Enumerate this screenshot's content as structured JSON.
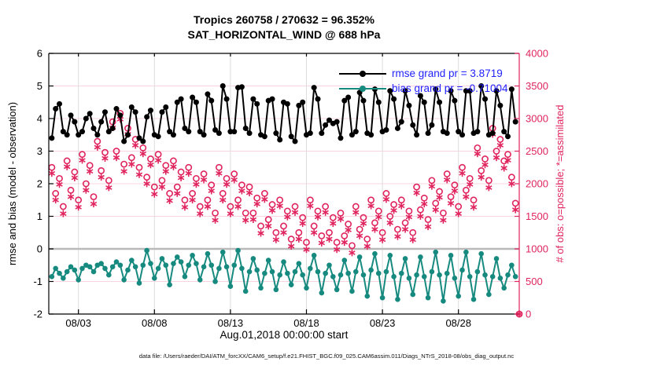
{
  "figure": {
    "title_line1": "Tropics 260758 / 270632 = 96.352%",
    "title_line2": "SAT_HORIZONTAL_WIND @ 688 hPa",
    "caption": "data file: /Users/raeder/DAI/ATM_forcXX/CAM6_setup/f.e21.FHIST_BGC.f09_025.CAM6assim.011/Diags_NTrS_2018-08/obs_diag_output.nc"
  },
  "colors": {
    "rmse": "#000000",
    "bias": "#178a80",
    "obs": "#e0245e",
    "legend_text": "#2222ff",
    "grid_h": "#f7d4e0",
    "grid_v": "#dcdcdc",
    "zero_line": "#b9b9b9",
    "axis_left": "#000000",
    "axis_right": "#e0245e"
  },
  "chart_data": {
    "type": "line",
    "title": "Tropics 260758 / 270632 = 96.352% | SAT_HORIZONTAL_WIND @ 688 hPa",
    "xlabel": "Aug.01,2018 00:00:00 start",
    "ylabel_left": "rmse and bias (model - observation)",
    "ylabel_right": "# of obs: o=possible; *=assimilated",
    "x_domain_days": [
      1.05,
      32
    ],
    "x_start_day": 1.25,
    "x_step_days": 0.25,
    "x_ticks": [
      {
        "day": 3,
        "label": "08/03"
      },
      {
        "day": 8,
        "label": "08/08"
      },
      {
        "day": 13,
        "label": "08/13"
      },
      {
        "day": 18,
        "label": "08/18"
      },
      {
        "day": 23,
        "label": "08/23"
      },
      {
        "day": 28,
        "label": "08/28"
      }
    ],
    "ylim_left": [
      -2,
      6
    ],
    "yticks_left": [
      -2,
      -1,
      0,
      1,
      2,
      3,
      4,
      5,
      6
    ],
    "ylim_right": [
      0,
      4000
    ],
    "yticks_right": [
      0,
      500,
      1000,
      1500,
      2000,
      2500,
      3000,
      3500,
      4000
    ],
    "grid": true,
    "legend_position": "top-right-inside",
    "legend": [
      {
        "series": "rmse",
        "label": "rmse grand pr = 3.8719"
      },
      {
        "series": "bias",
        "label": "bias grand pr = -0.71004"
      }
    ],
    "series": [
      {
        "name": "rmse",
        "axis": "left",
        "style": "line+dot",
        "values": [
          3.4,
          4.3,
          4.45,
          3.6,
          3.5,
          4.1,
          3.9,
          3.5,
          3.6,
          4.0,
          4.15,
          3.7,
          3.5,
          3.9,
          4.2,
          3.6,
          3.7,
          4.3,
          4.1,
          3.3,
          3.5,
          4.35,
          4.2,
          3.4,
          3.3,
          4.05,
          4.25,
          3.5,
          3.45,
          4.2,
          4.35,
          3.6,
          3.5,
          4.5,
          4.6,
          3.7,
          3.6,
          4.65,
          4.5,
          3.6,
          3.5,
          4.75,
          4.55,
          3.65,
          3.55,
          5.0,
          4.6,
          3.6,
          3.6,
          4.95,
          4.97,
          3.7,
          3.55,
          4.6,
          4.45,
          3.5,
          3.45,
          4.55,
          4.6,
          3.55,
          3.35,
          4.5,
          4.45,
          3.45,
          3.3,
          4.4,
          4.5,
          3.5,
          3.55,
          4.95,
          4.6,
          3.55,
          3.8,
          3.95,
          3.85,
          3.9,
          3.4,
          4.55,
          4.65,
          3.5,
          3.6,
          4.8,
          4.55,
          3.55,
          3.5,
          4.9,
          4.5,
          3.6,
          3.65,
          4.85,
          4.6,
          3.7,
          3.9,
          4.85,
          4.4,
          3.8,
          3.5,
          4.7,
          4.5,
          3.55,
          3.8,
          4.9,
          4.5,
          3.6,
          3.55,
          4.85,
          4.55,
          3.6,
          3.5,
          4.85,
          4.85,
          3.55,
          3.6,
          5.0,
          4.6,
          3.5,
          3.55,
          4.85,
          4.4,
          3.6,
          3.45,
          4.9,
          3.9,
          null
        ]
      },
      {
        "name": "bias",
        "axis": "left",
        "style": "line+dot",
        "values": [
          -0.85,
          -0.6,
          -0.75,
          -0.9,
          -0.7,
          -0.55,
          -0.65,
          -0.95,
          -0.6,
          -0.5,
          -0.55,
          -0.7,
          -0.5,
          -0.45,
          -0.6,
          -0.8,
          -0.55,
          -0.4,
          -0.5,
          -0.95,
          -0.65,
          -0.35,
          -0.55,
          -1.05,
          -0.5,
          -0.05,
          -0.45,
          -0.9,
          -0.6,
          -0.3,
          -0.5,
          -1.1,
          -0.45,
          -0.25,
          -0.4,
          -0.85,
          -0.5,
          -0.2,
          -0.45,
          -0.95,
          -0.55,
          -0.15,
          -0.5,
          -1.0,
          -0.6,
          -0.1,
          -0.55,
          -1.15,
          -0.5,
          -0.05,
          -0.6,
          -1.3,
          -0.7,
          -0.3,
          -0.65,
          -1.2,
          -0.75,
          -0.35,
          -0.7,
          -1.25,
          -0.8,
          -0.4,
          -0.75,
          -1.1,
          -0.7,
          -0.45,
          -0.8,
          -1.2,
          -0.6,
          -0.2,
          -0.7,
          -1.35,
          -0.75,
          -0.5,
          -0.85,
          -1.25,
          -0.8,
          -0.35,
          -0.75,
          -1.3,
          -0.7,
          -0.25,
          -0.8,
          -1.45,
          -0.65,
          -0.15,
          -0.75,
          -1.5,
          -0.7,
          -0.2,
          -0.85,
          -1.55,
          -0.75,
          -0.3,
          -0.9,
          -1.4,
          -0.8,
          -0.25,
          -0.85,
          -1.5,
          -0.7,
          -0.1,
          -0.8,
          -1.6,
          -0.75,
          -0.2,
          -0.9,
          -1.45,
          -0.65,
          -0.1,
          -0.85,
          -1.55,
          -0.7,
          -0.15,
          -0.8,
          -1.4,
          -0.85,
          -0.3,
          -0.9,
          -1.2,
          -0.8,
          -0.5,
          -0.85,
          null
        ]
      },
      {
        "name": "possible",
        "axis": "right",
        "style": "circle",
        "values": [
          2250,
          1850,
          2080,
          1650,
          2350,
          1900,
          2180,
          1750,
          2450,
          2000,
          2280,
          1800,
          2650,
          2200,
          2480,
          2050,
          2950,
          2500,
          3080,
          2300,
          2850,
          2400,
          2680,
          2250,
          2550,
          2100,
          2380,
          1950,
          2450,
          2050,
          2280,
          1850,
          2350,
          1950,
          2180,
          1750,
          2250,
          1850,
          2080,
          1650,
          2150,
          1750,
          1980,
          1550,
          2250,
          1850,
          2080,
          1650,
          2150,
          1750,
          1980,
          1550,
          1950,
          1550,
          1780,
          1350,
          1850,
          1450,
          1680,
          1250,
          1750,
          1350,
          1580,
          1150,
          1650,
          1250,
          1480,
          1100,
          1750,
          1350,
          1580,
          1200,
          1650,
          1250,
          1480,
          1100,
          1550,
          1200,
          1380,
          1050,
          1650,
          1300,
          1480,
          1150,
          1750,
          1400,
          1580,
          1250,
          1850,
          1500,
          1680,
          1300,
          1750,
          1400,
          1580,
          1250,
          1950,
          1600,
          1780,
          1450,
          2050,
          1700,
          1880,
          1550,
          2150,
          1800,
          1980,
          1650,
          2250,
          1900,
          2080,
          1750,
          2550,
          2200,
          2380,
          2050,
          2850,
          2500,
          2680,
          2350,
          2450,
          2100,
          1700,
          0
        ]
      },
      {
        "name": "assimilated",
        "axis": "right",
        "style": "asterisk",
        "values": [
          2160,
          1750,
          1990,
          1540,
          2260,
          1800,
          2090,
          1640,
          2360,
          1900,
          2190,
          1690,
          2560,
          2100,
          2390,
          1940,
          2860,
          2400,
          2990,
          2190,
          2760,
          2300,
          2590,
          2140,
          2460,
          2000,
          2290,
          1840,
          2360,
          1950,
          2190,
          1740,
          2260,
          1850,
          2090,
          1640,
          2160,
          1750,
          1990,
          1540,
          2060,
          1650,
          1890,
          1440,
          2160,
          1750,
          1990,
          1540,
          2060,
          1650,
          1890,
          1440,
          1860,
          1450,
          1690,
          1240,
          1760,
          1350,
          1590,
          1140,
          1660,
          1250,
          1490,
          1040,
          1560,
          1150,
          1390,
          990,
          1660,
          1250,
          1490,
          1090,
          1560,
          1150,
          1390,
          990,
          1460,
          1100,
          1290,
          940,
          1560,
          1200,
          1390,
          1040,
          1660,
          1300,
          1490,
          1140,
          1760,
          1400,
          1590,
          1190,
          1660,
          1300,
          1490,
          1140,
          1860,
          1500,
          1690,
          1340,
          1960,
          1600,
          1790,
          1440,
          2060,
          1700,
          1890,
          1540,
          2160,
          1800,
          1990,
          1640,
          2460,
          2100,
          2290,
          1940,
          2760,
          2400,
          2590,
          2240,
          2360,
          2000,
          1600,
          0
        ]
      }
    ]
  }
}
